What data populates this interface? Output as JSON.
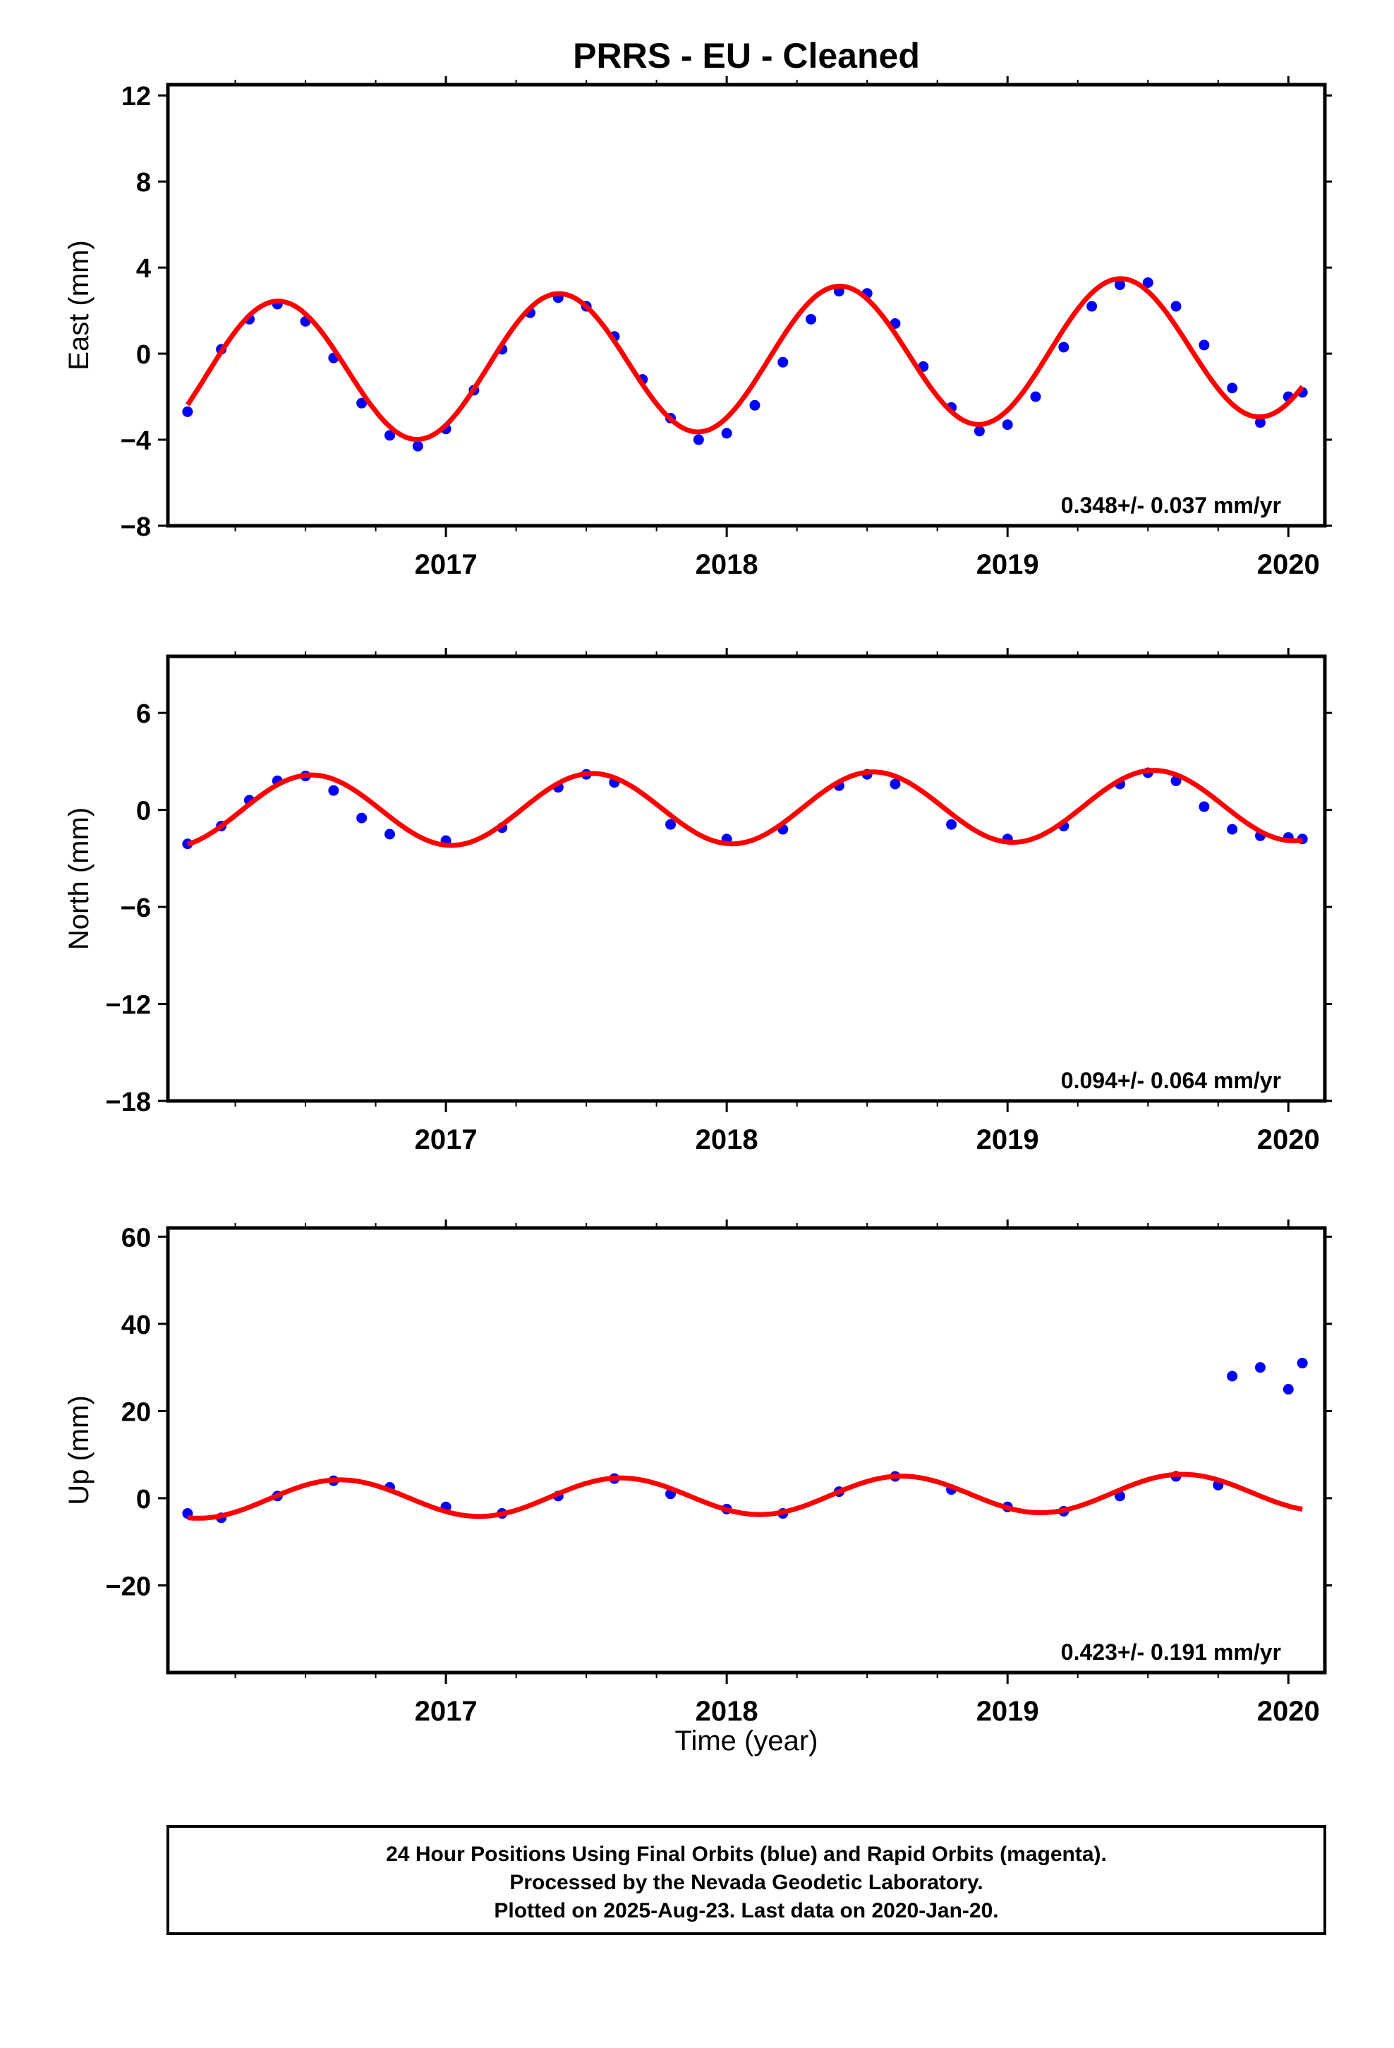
{
  "figure": {
    "title": "PRRS  - EU - Cleaned",
    "xlabel": "Time (year)",
    "footer": [
      "24 Hour Positions Using Final Orbits (blue) and Rapid Orbits (magenta).",
      "Processed by the Nevada Geodetic Laboratory.",
      "Plotted on 2025-Aug-23. Last data on 2020-Jan-20."
    ]
  },
  "colors": {
    "points": "#0000ff",
    "fit": "#ff0000",
    "frame": "#000000"
  },
  "chart_data": [
    {
      "type": "scatter",
      "panel": "east",
      "ylabel": "East (mm)",
      "rate_label": "0.348+/- 0.037 mm/yr",
      "xlim": [
        2016.01,
        2020.13
      ],
      "ylim": [
        -8,
        12.5
      ],
      "x_ticks": [
        2017,
        2018,
        2019,
        2020
      ],
      "y_ticks": [
        -8,
        -4,
        0,
        4,
        8,
        12
      ],
      "y_tick_labels": [
        "−8",
        "−4",
        "0",
        "4",
        "8",
        "12"
      ],
      "fit": {
        "mean": -1.0,
        "amplitude": 3.3,
        "peak_phase": 0.4,
        "rate": 0.348,
        "x0": 2016.0
      },
      "series": [
        {
          "x": [
            2016.08,
            2016.2,
            2016.3,
            2016.4,
            2016.5,
            2016.6,
            2016.7,
            2016.8,
            2016.9,
            2017.0,
            2017.1,
            2017.2,
            2017.3,
            2017.4,
            2017.5,
            2017.6,
            2017.7,
            2017.8,
            2017.9,
            2018.0,
            2018.1,
            2018.2,
            2018.3,
            2018.4,
            2018.5,
            2018.6,
            2018.7,
            2018.8,
            2018.9,
            2019.0,
            2019.1,
            2019.2,
            2019.3,
            2019.4,
            2019.5,
            2019.6,
            2019.7,
            2019.8,
            2019.9,
            2020.0,
            2020.05
          ],
          "y": [
            -2.7,
            0.2,
            1.6,
            2.3,
            1.5,
            -0.2,
            -2.3,
            -3.8,
            -4.3,
            -3.5,
            -1.7,
            0.2,
            1.9,
            2.6,
            2.2,
            0.8,
            -1.2,
            -3.0,
            -4.0,
            -3.7,
            -2.4,
            -0.4,
            1.6,
            2.9,
            2.8,
            1.4,
            -0.6,
            -2.5,
            -3.6,
            -3.3,
            -2.0,
            0.3,
            2.2,
            3.2,
            3.3,
            2.2,
            0.4,
            -1.6,
            -3.2,
            -2.0,
            -1.8
          ]
        }
      ]
    },
    {
      "type": "scatter",
      "panel": "north",
      "ylabel": "North (mm)",
      "rate_label": "0.094+/- 0.064 mm/yr",
      "xlim": [
        2016.01,
        2020.13
      ],
      "ylim": [
        -18,
        9.5
      ],
      "x_ticks": [
        2017,
        2018,
        2019,
        2020
      ],
      "y_ticks": [
        -18,
        -12,
        -6,
        0,
        6
      ],
      "y_tick_labels": [
        "−18",
        "−12",
        "−6",
        "0",
        "6"
      ],
      "fit": {
        "mean": 0.1,
        "amplitude": 2.2,
        "peak_phase": 0.52,
        "rate": 0.094,
        "x0": 2018.0
      },
      "series": [
        {
          "x": [
            2016.08,
            2016.2,
            2016.3,
            2016.4,
            2016.5,
            2016.6,
            2016.7,
            2016.8,
            2017.0,
            2017.2,
            2017.4,
            2017.5,
            2017.6,
            2017.8,
            2018.0,
            2018.2,
            2018.4,
            2018.5,
            2018.6,
            2018.8,
            2019.0,
            2019.2,
            2019.4,
            2019.5,
            2019.6,
            2019.7,
            2019.8,
            2019.9,
            2020.0,
            2020.05
          ],
          "y": [
            -2.1,
            -1.0,
            0.6,
            1.8,
            2.1,
            1.2,
            -0.5,
            -1.5,
            -1.9,
            -1.1,
            1.4,
            2.2,
            1.7,
            -0.9,
            -1.8,
            -1.2,
            1.5,
            2.2,
            1.6,
            -0.9,
            -1.8,
            -1.0,
            1.6,
            2.3,
            1.8,
            0.2,
            -1.2,
            -1.6,
            -1.7,
            -1.8
          ]
        }
      ]
    },
    {
      "type": "scatter",
      "panel": "up",
      "ylabel": "Up (mm)",
      "rate_label": "0.423+/- 0.191 mm/yr",
      "xlim": [
        2016.01,
        2020.13
      ],
      "ylim": [
        -40,
        62
      ],
      "x_ticks": [
        2017,
        2018,
        2019,
        2020
      ],
      "y_ticks": [
        -20,
        0,
        20,
        40,
        60
      ],
      "y_tick_labels": [
        "−20",
        "0",
        "20",
        "40",
        "60"
      ],
      "fit": {
        "mean": 0.5,
        "amplitude": 4.3,
        "peak_phase": 0.62,
        "rate": 0.423,
        "x0": 2018.0
      },
      "series": [
        {
          "x": [
            2016.08,
            2016.2,
            2016.4,
            2016.6,
            2016.8,
            2017.0,
            2017.2,
            2017.4,
            2017.6,
            2017.8,
            2018.0,
            2018.2,
            2018.4,
            2018.6,
            2018.8,
            2019.0,
            2019.2,
            2019.4,
            2019.6,
            2019.75,
            2019.8,
            2019.9,
            2020.0,
            2020.05
          ],
          "y": [
            -3.5,
            -4.5,
            0.5,
            4.0,
            2.5,
            -2.0,
            -3.5,
            0.5,
            4.5,
            1.0,
            -2.5,
            -3.5,
            1.5,
            5.0,
            2.0,
            -2.0,
            -3.0,
            0.5,
            5.0,
            3.0,
            28.0,
            30.0,
            25.0,
            31.0
          ]
        }
      ]
    }
  ]
}
